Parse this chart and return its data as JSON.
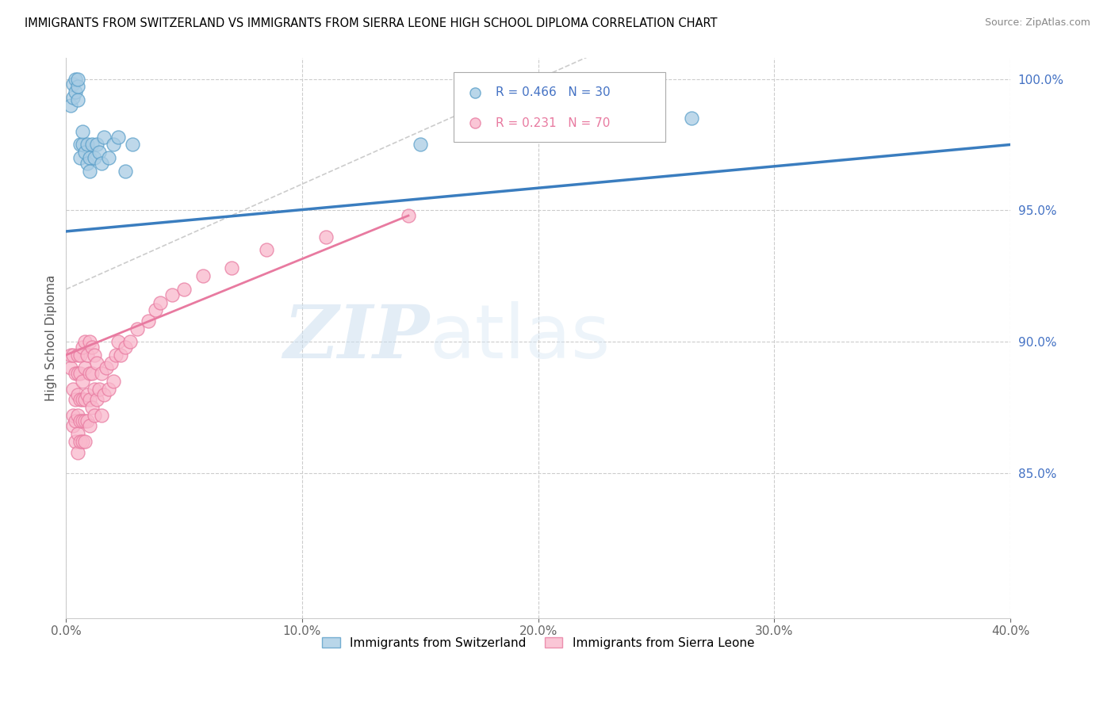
{
  "title": "IMMIGRANTS FROM SWITZERLAND VS IMMIGRANTS FROM SIERRA LEONE HIGH SCHOOL DIPLOMA CORRELATION CHART",
  "source": "Source: ZipAtlas.com",
  "ylabel": "High School Diploma",
  "xlim": [
    0.0,
    0.4
  ],
  "ylim": [
    0.795,
    1.008
  ],
  "xticks": [
    0.0,
    0.1,
    0.2,
    0.3,
    0.4
  ],
  "xticklabels": [
    "0.0%",
    "10.0%",
    "20.0%",
    "30.0%",
    "40.0%"
  ],
  "yticks_right": [
    0.85,
    0.9,
    0.95,
    1.0
  ],
  "ytick_labels_right": [
    "85.0%",
    "90.0%",
    "95.0%",
    "100.0%"
  ],
  "legend_r_swiss": "R = 0.466",
  "legend_n_swiss": "N = 30",
  "legend_r_sierra": "R = 0.231",
  "legend_n_sierra": "N = 70",
  "color_swiss_face": "#a8cce4",
  "color_swiss_edge": "#5a9fc9",
  "color_sierra_face": "#f9b8cc",
  "color_sierra_edge": "#e87aa0",
  "color_swiss_line": "#3a7dbf",
  "color_sierra_line": "#e87aa0",
  "color_diagonal": "#cccccc",
  "watermark_zip": "ZIP",
  "watermark_atlas": "atlas",
  "swiss_x": [
    0.002,
    0.003,
    0.003,
    0.004,
    0.004,
    0.005,
    0.005,
    0.005,
    0.006,
    0.006,
    0.007,
    0.007,
    0.008,
    0.009,
    0.009,
    0.01,
    0.01,
    0.011,
    0.012,
    0.013,
    0.014,
    0.015,
    0.016,
    0.018,
    0.02,
    0.022,
    0.025,
    0.028,
    0.15,
    0.265
  ],
  "swiss_y": [
    0.99,
    0.993,
    0.998,
    0.995,
    1.0,
    0.992,
    0.997,
    1.0,
    0.975,
    0.97,
    0.975,
    0.98,
    0.972,
    0.968,
    0.975,
    0.97,
    0.965,
    0.975,
    0.97,
    0.975,
    0.972,
    0.968,
    0.978,
    0.97,
    0.975,
    0.978,
    0.965,
    0.975,
    0.975,
    0.985
  ],
  "sierra_x": [
    0.002,
    0.002,
    0.003,
    0.003,
    0.003,
    0.003,
    0.004,
    0.004,
    0.004,
    0.004,
    0.005,
    0.005,
    0.005,
    0.005,
    0.005,
    0.005,
    0.006,
    0.006,
    0.006,
    0.006,
    0.006,
    0.007,
    0.007,
    0.007,
    0.007,
    0.007,
    0.008,
    0.008,
    0.008,
    0.008,
    0.008,
    0.009,
    0.009,
    0.009,
    0.01,
    0.01,
    0.01,
    0.01,
    0.011,
    0.011,
    0.011,
    0.012,
    0.012,
    0.012,
    0.013,
    0.013,
    0.014,
    0.015,
    0.015,
    0.016,
    0.017,
    0.018,
    0.019,
    0.02,
    0.021,
    0.022,
    0.023,
    0.025,
    0.027,
    0.03,
    0.035,
    0.038,
    0.04,
    0.045,
    0.05,
    0.058,
    0.07,
    0.085,
    0.11,
    0.145
  ],
  "sierra_y": [
    0.89,
    0.895,
    0.868,
    0.872,
    0.882,
    0.895,
    0.862,
    0.87,
    0.878,
    0.888,
    0.858,
    0.865,
    0.872,
    0.88,
    0.888,
    0.895,
    0.862,
    0.87,
    0.878,
    0.888,
    0.895,
    0.862,
    0.87,
    0.878,
    0.885,
    0.898,
    0.862,
    0.87,
    0.878,
    0.89,
    0.9,
    0.87,
    0.88,
    0.895,
    0.868,
    0.878,
    0.888,
    0.9,
    0.875,
    0.888,
    0.898,
    0.872,
    0.882,
    0.895,
    0.878,
    0.892,
    0.882,
    0.872,
    0.888,
    0.88,
    0.89,
    0.882,
    0.892,
    0.885,
    0.895,
    0.9,
    0.895,
    0.898,
    0.9,
    0.905,
    0.908,
    0.912,
    0.915,
    0.918,
    0.92,
    0.925,
    0.928,
    0.935,
    0.94,
    0.948
  ],
  "swiss_line_x0": 0.0,
  "swiss_line_x1": 0.4,
  "swiss_line_y0": 0.942,
  "swiss_line_y1": 0.975,
  "sierra_line_x0": 0.0,
  "sierra_line_x1": 0.145,
  "sierra_line_y0": 0.895,
  "sierra_line_y1": 0.948
}
